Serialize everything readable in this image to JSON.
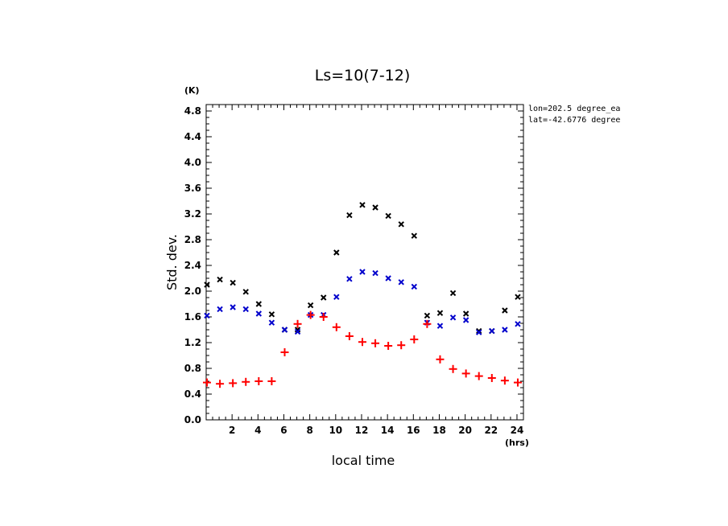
{
  "chart_data": {
    "type": "scatter",
    "title": "Ls=10(7-12)",
    "xlabel": "local time",
    "ylabel": "Std. dev.",
    "x_unit": "(hrs)",
    "y_unit": "(K)",
    "xlim": [
      0,
      24.5
    ],
    "ylim": [
      0,
      4.9
    ],
    "xticks": [
      "2",
      "4",
      "6",
      "8",
      "10",
      "12",
      "14",
      "16",
      "18",
      "20",
      "22",
      "24"
    ],
    "yticks": [
      "0.0",
      "0.4",
      "0.8",
      "1.2",
      "1.6",
      "2.0",
      "2.4",
      "2.8",
      "3.2",
      "3.6",
      "4.0",
      "4.4",
      "4.8"
    ],
    "annotations": [
      "lon=202.5 degree_ea",
      "lat=-42.6776 degree"
    ],
    "colors": {
      "black_series": "#000000",
      "blue_series": "#0000cc",
      "red_series": "#ff0000"
    },
    "x": [
      0,
      1,
      2,
      3,
      4,
      5,
      6,
      7,
      8,
      9,
      10,
      11,
      12,
      13,
      14,
      15,
      16,
      17,
      18,
      19,
      20,
      21,
      22,
      23,
      24
    ],
    "series": [
      {
        "marker": "x",
        "color": "#000000",
        "values": [
          2.1,
          2.18,
          2.13,
          1.99,
          1.8,
          1.64,
          1.4,
          1.4,
          1.78,
          1.9,
          2.6,
          3.18,
          3.34,
          3.3,
          3.17,
          3.04,
          2.86,
          1.62,
          1.66,
          1.97,
          1.65,
          1.38,
          1.38,
          1.7,
          1.91
        ]
      },
      {
        "marker": "x",
        "color": "#0000cc",
        "values": [
          1.62,
          1.72,
          1.75,
          1.72,
          1.65,
          1.51,
          1.4,
          1.37,
          1.63,
          1.63,
          1.91,
          2.19,
          2.3,
          2.28,
          2.2,
          2.14,
          2.07,
          1.51,
          1.46,
          1.59,
          1.55,
          1.36,
          1.38,
          1.4,
          1.49
        ]
      },
      {
        "marker": "+",
        "color": "#ff0000",
        "values": [
          0.58,
          0.56,
          0.57,
          0.59,
          0.6,
          0.6,
          1.05,
          1.49,
          1.63,
          1.6,
          1.44,
          1.3,
          1.21,
          1.19,
          1.15,
          1.16,
          1.25,
          1.49,
          0.94,
          0.79,
          0.72,
          0.68,
          0.65,
          0.61,
          0.58
        ]
      }
    ]
  }
}
